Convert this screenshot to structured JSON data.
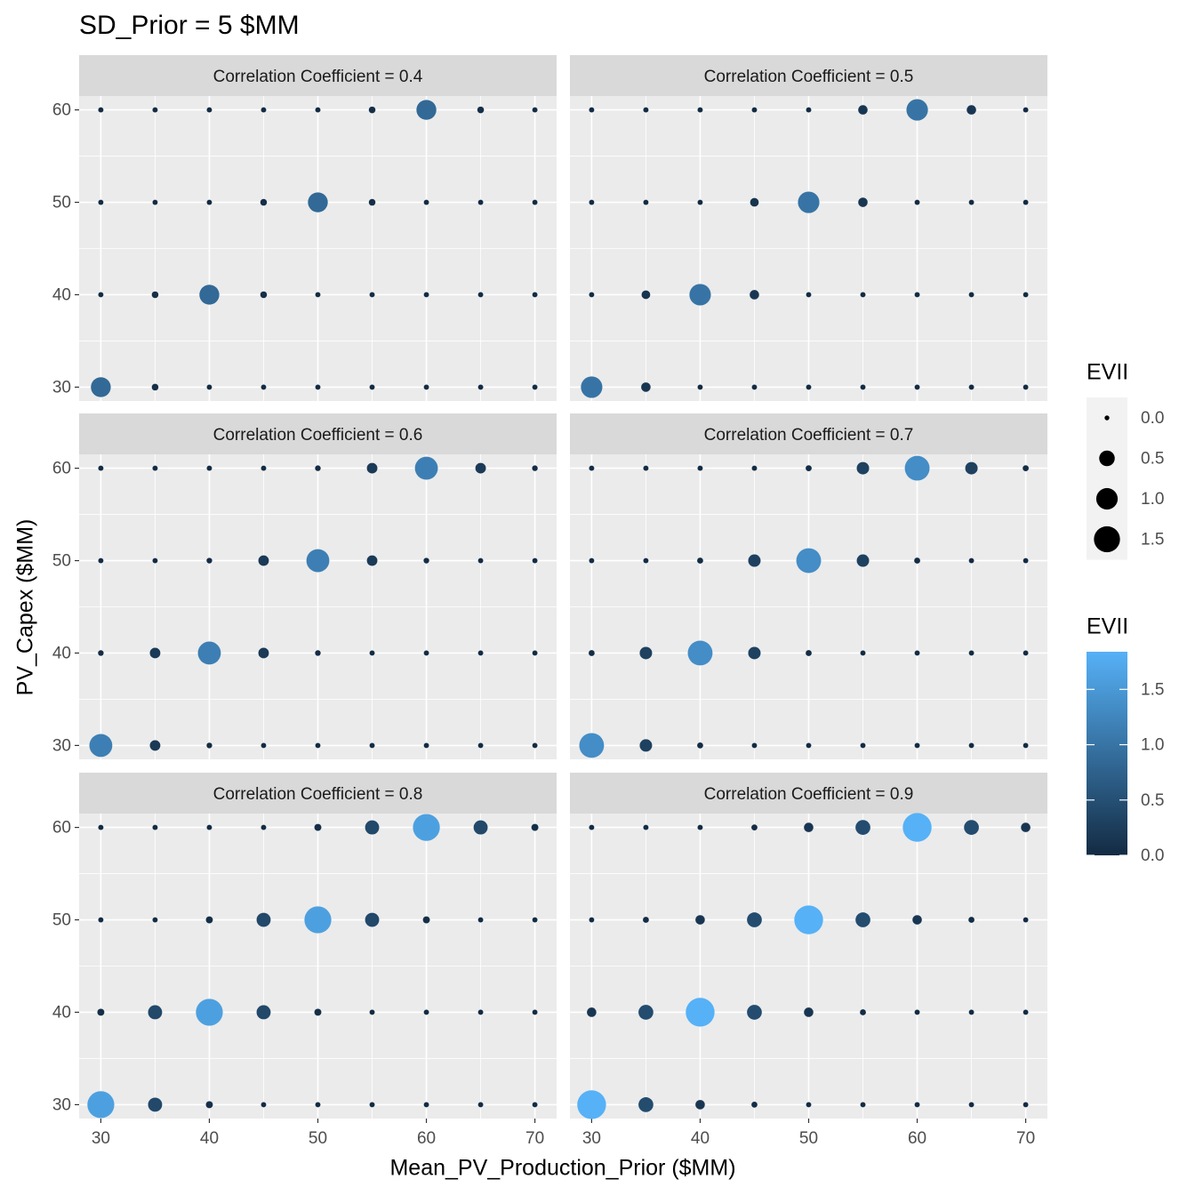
{
  "title": "SD_Prior = 5 $MM",
  "x_label": "Mean_PV_Production_Prior ($MM)",
  "y_label": "PV_Capex ($MM)",
  "size_legend": {
    "title": "EVII",
    "breaks": [
      {
        "value": 0,
        "label": "0.0"
      },
      0.5,
      {
        "value": 1,
        "label": "1.0"
      },
      1.5
    ]
  },
  "color_legend": {
    "title": "EVII",
    "lim": [
      0,
      1.84
    ],
    "ticks": [
      {
        "value": 0,
        "label": "0.0"
      },
      0.5,
      {
        "value": 1,
        "label": "1.0"
      },
      1.5
    ],
    "low": "#132B43",
    "high": "#56B1F7"
  },
  "chart_data": [
    {
      "type": "bubble",
      "title": "Correlation Coefficient = 0.4",
      "x": [
        30,
        35,
        40,
        45,
        50,
        55,
        60,
        65,
        70
      ],
      "y": [
        60,
        50,
        40,
        30
      ],
      "values": [
        [
          0.01,
          0.01,
          0.01,
          0.01,
          0.01,
          0.05,
          0.85,
          0.05,
          0.01
        ],
        [
          0.01,
          0.01,
          0.01,
          0.05,
          0.85,
          0.05,
          0.01,
          0.01,
          0.01
        ],
        [
          0.01,
          0.05,
          0.85,
          0.05,
          0.01,
          0.01,
          0.01,
          0.01,
          0.01
        ],
        [
          0.85,
          0.05,
          0.01,
          0.01,
          0.01,
          0.01,
          0.01,
          0.01,
          0.01
        ]
      ],
      "xlim": [
        28,
        72
      ],
      "ylim": [
        28.5,
        61.5
      ],
      "xticks": [
        30,
        40,
        50,
        60,
        70
      ],
      "yticks": [
        30,
        40,
        50,
        60
      ],
      "grid": true
    },
    {
      "type": "bubble",
      "title": "Correlation Coefficient = 0.5",
      "x": [
        30,
        35,
        40,
        45,
        50,
        55,
        60,
        65,
        70
      ],
      "y": [
        60,
        50,
        40,
        30
      ],
      "values": [
        [
          0.01,
          0.01,
          0.01,
          0.01,
          0.01,
          0.15,
          1.0,
          0.15,
          0.01
        ],
        [
          0.01,
          0.01,
          0.01,
          0.12,
          1.0,
          0.15,
          0.01,
          0.01,
          0.01
        ],
        [
          0.01,
          0.12,
          1.0,
          0.15,
          0.01,
          0.01,
          0.01,
          0.01,
          0.01
        ],
        [
          1.0,
          0.15,
          0.01,
          0.01,
          0.01,
          0.01,
          0.01,
          0.01,
          0.01
        ]
      ],
      "xlim": [
        28,
        72
      ],
      "ylim": [
        28.5,
        61.5
      ],
      "xticks": [
        30,
        40,
        50,
        60,
        70
      ],
      "yticks": [
        30,
        40,
        50,
        60
      ],
      "grid": true
    },
    {
      "type": "bubble",
      "title": "Correlation Coefficient = 0.6",
      "x": [
        30,
        35,
        40,
        45,
        50,
        55,
        60,
        65,
        70
      ],
      "y": [
        60,
        50,
        40,
        30
      ],
      "values": [
        [
          0.01,
          0.01,
          0.01,
          0.01,
          0.02,
          0.2,
          1.15,
          0.2,
          0.02
        ],
        [
          0.01,
          0.01,
          0.02,
          0.2,
          1.15,
          0.2,
          0.02,
          0.01,
          0.01
        ],
        [
          0.02,
          0.2,
          1.15,
          0.2,
          0.02,
          0.01,
          0.01,
          0.01,
          0.01
        ],
        [
          1.15,
          0.2,
          0.02,
          0.01,
          0.01,
          0.01,
          0.01,
          0.01,
          0.01
        ]
      ],
      "xlim": [
        28,
        72
      ],
      "ylim": [
        28.5,
        61.5
      ],
      "xticks": [
        30,
        40,
        50,
        60,
        70
      ],
      "yticks": [
        30,
        40,
        50,
        60
      ],
      "grid": true
    },
    {
      "type": "bubble",
      "title": "Correlation Coefficient = 0.7",
      "x": [
        30,
        35,
        40,
        45,
        50,
        55,
        60,
        65,
        70
      ],
      "y": [
        60,
        50,
        40,
        30
      ],
      "values": [
        [
          0.01,
          0.01,
          0.01,
          0.01,
          0.03,
          0.3,
          1.35,
          0.3,
          0.03
        ],
        [
          0.01,
          0.01,
          0.03,
          0.3,
          1.35,
          0.3,
          0.03,
          0.01,
          0.01
        ],
        [
          0.03,
          0.3,
          1.35,
          0.3,
          0.03,
          0.01,
          0.01,
          0.01,
          0.01
        ],
        [
          1.35,
          0.3,
          0.03,
          0.01,
          0.01,
          0.01,
          0.01,
          0.01,
          0.01
        ]
      ],
      "xlim": [
        28,
        72
      ],
      "ylim": [
        28.5,
        61.5
      ],
      "xticks": [
        30,
        40,
        50,
        60,
        70
      ],
      "yticks": [
        30,
        40,
        50,
        60
      ],
      "grid": true
    },
    {
      "type": "bubble",
      "title": "Correlation Coefficient = 0.8",
      "x": [
        30,
        35,
        40,
        45,
        50,
        55,
        60,
        65,
        70
      ],
      "y": [
        60,
        50,
        40,
        30
      ],
      "values": [
        [
          0.01,
          0.01,
          0.01,
          0.01,
          0.06,
          0.4,
          1.6,
          0.4,
          0.06
        ],
        [
          0.01,
          0.01,
          0.06,
          0.4,
          1.6,
          0.4,
          0.06,
          0.01,
          0.01
        ],
        [
          0.06,
          0.4,
          1.6,
          0.4,
          0.06,
          0.01,
          0.01,
          0.01,
          0.01
        ],
        [
          1.6,
          0.4,
          0.06,
          0.01,
          0.01,
          0.01,
          0.01,
          0.01,
          0.01
        ]
      ],
      "xlim": [
        28,
        72
      ],
      "ylim": [
        28.5,
        61.5
      ],
      "xticks": [
        30,
        40,
        50,
        60,
        70
      ],
      "yticks": [
        30,
        40,
        50,
        60
      ],
      "grid": true
    },
    {
      "type": "bubble",
      "title": "Correlation Coefficient = 0.9",
      "x": [
        30,
        35,
        40,
        45,
        50,
        55,
        60,
        65,
        70
      ],
      "y": [
        60,
        50,
        40,
        30
      ],
      "values": [
        [
          0.01,
          0.01,
          0.01,
          0.03,
          0.15,
          0.45,
          1.84,
          0.45,
          0.15
        ],
        [
          0.01,
          0.03,
          0.15,
          0.45,
          1.84,
          0.45,
          0.15,
          0.03,
          0.01
        ],
        [
          0.15,
          0.45,
          1.84,
          0.45,
          0.15,
          0.03,
          0.01,
          0.01,
          0.01
        ],
        [
          1.84,
          0.45,
          0.15,
          0.03,
          0.01,
          0.01,
          0.01,
          0.01,
          0.01
        ]
      ],
      "xlim": [
        28,
        72
      ],
      "ylim": [
        28.5,
        61.5
      ],
      "xticks": [
        30,
        40,
        50,
        60,
        70
      ],
      "yticks": [
        30,
        40,
        50,
        60
      ],
      "grid": true
    }
  ]
}
